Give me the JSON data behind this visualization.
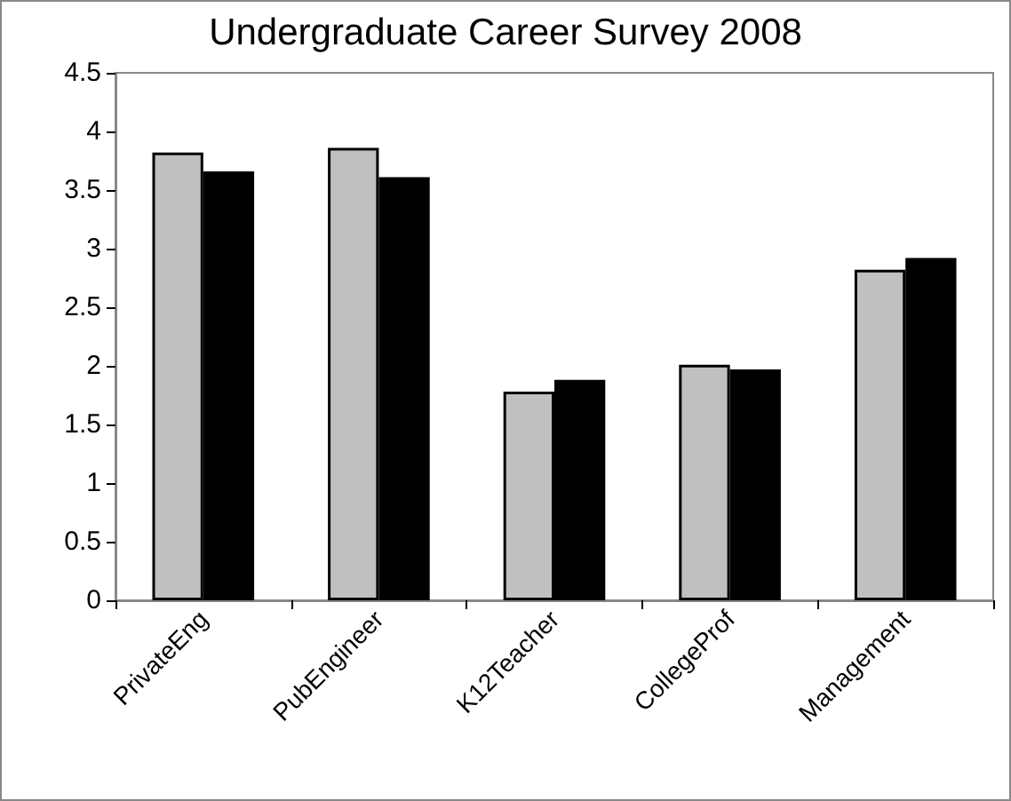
{
  "chart_data": {
    "type": "bar",
    "title": "Undergraduate Career Survey 2008",
    "categories": [
      "PrivateEng",
      "PubEngineer",
      "K12Teacher",
      "CollegeProf",
      "Management"
    ],
    "series": [
      {
        "color": "#c0c0c0",
        "values": [
          3.82,
          3.86,
          1.78,
          2.01,
          2.82
        ]
      },
      {
        "color": "#000000",
        "values": [
          3.66,
          3.61,
          1.88,
          1.97,
          2.92
        ]
      }
    ],
    "ylim": [
      0,
      4.5
    ],
    "yticks": [
      0,
      0.5,
      1,
      1.5,
      2,
      2.5,
      3,
      3.5,
      4,
      4.5
    ],
    "grid": false
  }
}
